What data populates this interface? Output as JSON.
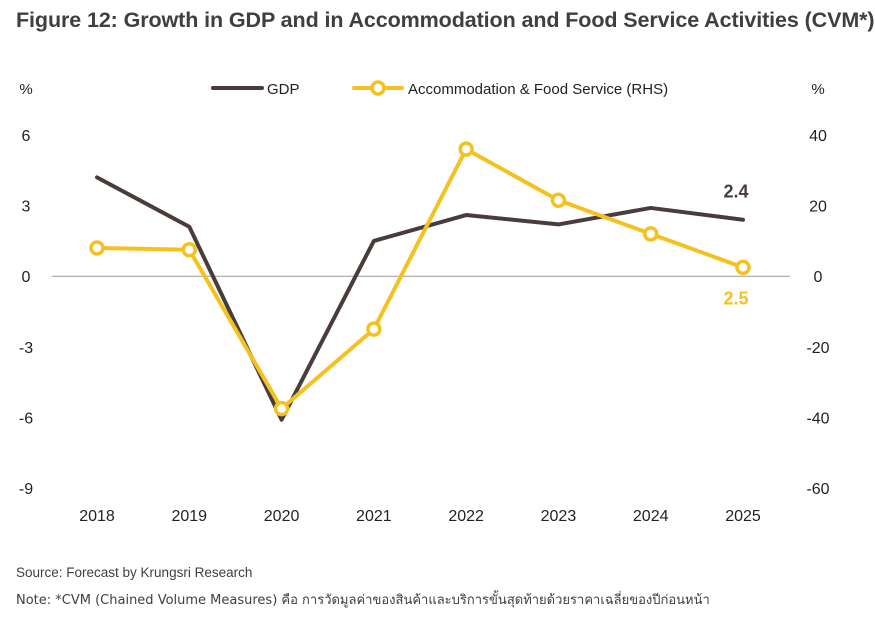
{
  "title": "Figure 12: Growth in GDP and in Accommodation and Food Service Activities (CVM*)",
  "footer": {
    "source": "Source: Forecast by Krungsri Research",
    "note": "Note: *CVM (Chained Volume Measures) คือ การวัดมูลค่าของสินค้าและบริการขั้นสุดท้ายด้วยราคาเฉลี่ยของปีก่อนหน้า"
  },
  "chart_data": {
    "type": "line",
    "categories": [
      "2018",
      "2019",
      "2020",
      "2021",
      "2022",
      "2023",
      "2024",
      "2025"
    ],
    "y_left": {
      "label": "%",
      "ylim": [
        -9,
        6
      ],
      "ticks": [
        "6",
        "3",
        "0",
        "-3",
        "-6",
        "-9"
      ]
    },
    "y_right": {
      "label": "%",
      "ylim": [
        -60,
        40
      ],
      "ticks": [
        "40",
        "20",
        "0",
        "-20",
        "-40",
        "-60"
      ]
    },
    "series": [
      {
        "name": "GDP",
        "axis": "left",
        "color": "#4a3c3a",
        "marker": false,
        "values": [
          4.2,
          2.1,
          -6.1,
          1.5,
          2.6,
          2.2,
          2.9,
          2.4
        ],
        "end_label": "2.4"
      },
      {
        "name": "Accommodation & Food Service (RHS)",
        "axis": "right",
        "color": "#f5c121",
        "marker": true,
        "values": [
          8,
          7.5,
          -37.5,
          -15,
          36,
          21.5,
          12,
          2.5
        ],
        "end_label": "2.5"
      }
    ],
    "legend_position": "top",
    "grid": false
  }
}
